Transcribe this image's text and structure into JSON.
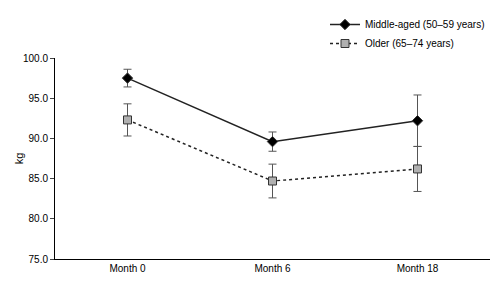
{
  "chart_data": {
    "type": "line",
    "y_label": "kg",
    "categories": [
      "Month 0",
      "Month 6",
      "Month 18"
    ],
    "series": [
      {
        "name": "Middle-aged (50–59 years)",
        "color": "#000000",
        "marker": "diamond",
        "line_style": "solid",
        "values": [
          97.5,
          89.6,
          92.2
        ],
        "errors": [
          1.1,
          1.2,
          3.2
        ]
      },
      {
        "name": "Older (65–74 years)",
        "color": "#b0b0b0",
        "marker": "square",
        "line_style": "dot",
        "values": [
          92.3,
          84.7,
          86.2
        ],
        "errors": [
          2.0,
          2.1,
          2.8
        ]
      }
    ],
    "ylim": [
      75,
      100
    ],
    "yticks": [
      {
        "value": 75,
        "label": "75.0"
      },
      {
        "value": 80,
        "label": "80.0"
      },
      {
        "value": 85,
        "label": "85.0"
      },
      {
        "value": 90,
        "label": "90.0"
      },
      {
        "value": 95,
        "label": "95.0"
      },
      {
        "value": 100,
        "label": "100.0"
      }
    ],
    "grid": false,
    "legend": "top-right"
  }
}
